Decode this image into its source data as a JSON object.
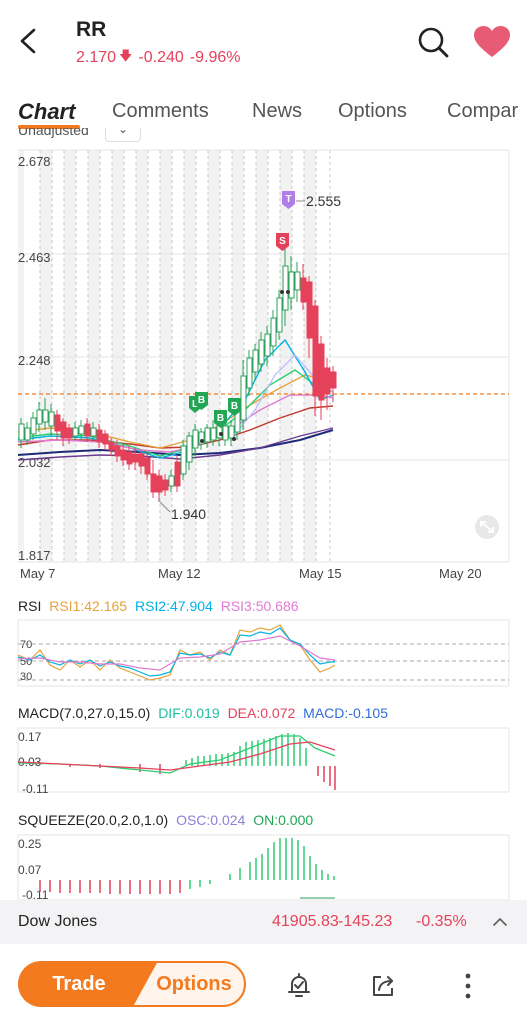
{
  "header": {
    "ticker": "RR",
    "price": "2.170",
    "change": "-0.240",
    "change_pct": "-9.96%",
    "direction_icon": "arrow-down-icon",
    "accent_color": "#e5415b"
  },
  "tabs": [
    "Chart",
    "Comments",
    "News",
    "Options",
    "Compar"
  ],
  "active_tab": "Chart",
  "adjust_label": "Unadjusted",
  "chart": {
    "y_ticks": [
      "2.678",
      "2.463",
      "2.248",
      "2.032",
      "1.817"
    ],
    "x_ticks": [
      "May 7",
      "May 12",
      "May 15",
      "May 20"
    ],
    "high_marker": "2.555",
    "low_marker": "1.940",
    "signal_badges": [
      "L",
      "B",
      "B",
      "B",
      "S",
      "T"
    ]
  },
  "rsi": {
    "name": "RSI",
    "rsi1": "RSI1:42.165",
    "rsi2": "RSI2:47.904",
    "rsi3": "RSI3:50.686",
    "levels": [
      "70",
      "50",
      "30"
    ]
  },
  "macd": {
    "name": "MACD(7.0,27.0,15.0)",
    "dif": "DIF:0.019",
    "dea": "DEA:0.072",
    "macd": "MACD:-0.105",
    "y_ticks": [
      "0.17",
      "0.03",
      "-0.11"
    ]
  },
  "squeeze": {
    "name": "SQUEEZE(20.0,2.0,1.0)",
    "osc": "OSC:0.024",
    "on": "ON:0.000",
    "y_ticks": [
      "0.25",
      "0.07",
      "-0.11"
    ]
  },
  "dow": {
    "name": "Dow Jones",
    "value": "41905.83",
    "change": "-145.23",
    "change_pct": "-0.35%"
  },
  "bottom": {
    "trade": "Trade",
    "options": "Options"
  }
}
